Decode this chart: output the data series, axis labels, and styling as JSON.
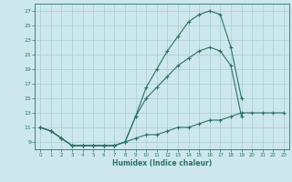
{
  "title": "",
  "xlabel": "Humidex (Indice chaleur)",
  "background_color": "#cce8ed",
  "grid_color": "#aacccc",
  "line_color": "#2d7068",
  "x_values": [
    0,
    1,
    2,
    3,
    4,
    5,
    6,
    7,
    8,
    9,
    10,
    11,
    12,
    13,
    14,
    15,
    16,
    17,
    18,
    19,
    20,
    21,
    22,
    23
  ],
  "line1_y": [
    11,
    10.5,
    9.5,
    8.5,
    8.5,
    8.5,
    8.5,
    8.5,
    9.0,
    12.5,
    16.5,
    19.0,
    21.5,
    23.5,
    25.5,
    26.5,
    27.0,
    26.5,
    22.0,
    15.0,
    null,
    null,
    null,
    null
  ],
  "line2_y": [
    11,
    10.5,
    9.5,
    8.5,
    8.5,
    8.5,
    8.5,
    8.5,
    9.0,
    12.5,
    15.0,
    16.5,
    18.0,
    19.5,
    20.5,
    21.5,
    22.0,
    21.5,
    19.5,
    12.5,
    null,
    null,
    null,
    null
  ],
  "line3_y": [
    11,
    10.5,
    9.5,
    8.5,
    8.5,
    8.5,
    8.5,
    8.5,
    9.0,
    9.5,
    10.0,
    10.0,
    10.5,
    11.0,
    11.0,
    11.5,
    12.0,
    12.0,
    12.5,
    13.0,
    13.0,
    13.0,
    13.0,
    13.0
  ],
  "ylim": [
    8.0,
    28.0
  ],
  "xlim": [
    -0.5,
    23.5
  ],
  "yticks": [
    9,
    11,
    13,
    15,
    17,
    19,
    21,
    23,
    25,
    27
  ],
  "xticks": [
    0,
    1,
    2,
    3,
    4,
    5,
    6,
    7,
    8,
    9,
    10,
    11,
    12,
    13,
    14,
    15,
    16,
    17,
    18,
    19,
    20,
    21,
    22,
    23
  ]
}
